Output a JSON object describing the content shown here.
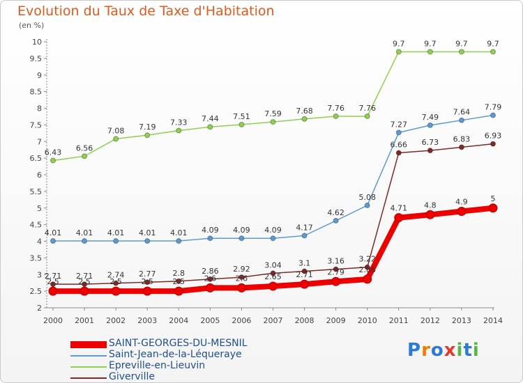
{
  "chart_data": {
    "type": "line",
    "title": "Evolution du Taux de Taxe d'Habitation",
    "unit_label": "(en %)",
    "x": [
      "2000",
      "2001",
      "2002",
      "2003",
      "2004",
      "2005",
      "2006",
      "2007",
      "2008",
      "2009",
      "2010",
      "2011",
      "2012",
      "2013",
      "2014"
    ],
    "ylim": [
      2,
      10
    ],
    "yticks": [
      "2",
      "2.5",
      "3",
      "3.5",
      "4",
      "4.5",
      "5",
      "5.5",
      "6",
      "6.5",
      "7",
      "7.5",
      "8",
      "8.5",
      "9",
      "9.5",
      "10"
    ],
    "grid": false,
    "legend_position": "bottom-left",
    "series": [
      {
        "name": "Saint-Jean-de-la-Léqueraye",
        "color": "#5b9bd5",
        "values": [
          4.01,
          4.01,
          4.01,
          4.01,
          4.01,
          4.09,
          4.09,
          4.09,
          4.17,
          4.62,
          5.08,
          7.27,
          7.49,
          7.64,
          7.79
        ],
        "labels": [
          "4.01",
          "4.01",
          "4.01",
          "4.01",
          "4.01",
          "4.09",
          "4.09",
          "4.09",
          "4.17",
          "4.62",
          "5.08",
          "7.27",
          "7.49",
          "7.64",
          "7.79"
        ]
      },
      {
        "name": "Epreville-en-Lieuvin",
        "color": "#8fd14f",
        "values": [
          6.43,
          6.56,
          7.08,
          7.19,
          7.33,
          7.44,
          7.51,
          7.59,
          7.68,
          7.76,
          7.76,
          9.7,
          9.7,
          9.7,
          9.7
        ],
        "labels": [
          "6.43",
          "6.56",
          "7.08",
          "7.19",
          "7.33",
          "7.44",
          "7.51",
          "7.59",
          "7.68",
          "7.76",
          "7.76",
          "9.7",
          "9.7",
          "9.7",
          "9.7"
        ]
      },
      {
        "name": "Giverville",
        "color": "#7b2a2a",
        "values": [
          2.71,
          2.71,
          2.74,
          2.77,
          2.8,
          2.86,
          2.92,
          3.04,
          3.1,
          3.16,
          3.22,
          6.66,
          6.73,
          6.83,
          6.93
        ],
        "labels": [
          "2.71",
          "2.71",
          "2.74",
          "2.77",
          "2.8",
          "2.86",
          "2.92",
          "3.04",
          "3.1",
          "3.16",
          "3.22",
          "6.66",
          "6.73",
          "6.83",
          "6.93"
        ]
      },
      {
        "name": "SAINT-GEORGES-DU-MESNIL",
        "color": "#ee0000",
        "values": [
          2.5,
          2.5,
          2.5,
          2.5,
          2.5,
          2.6,
          2.6,
          2.65,
          2.71,
          2.79,
          2.86,
          4.71,
          4.8,
          4.9,
          5.0
        ],
        "labels": [
          "2.5",
          "2.5",
          "2.5",
          "2.5",
          "2.5",
          "2.6",
          "2.6",
          "2.65",
          "2.71",
          "2.79",
          "2.86",
          "4.71",
          "4.8",
          "4.9",
          "5"
        ]
      }
    ]
  },
  "legend": [
    {
      "label": "SAINT-GEORGES-DU-MESNIL",
      "color": "#ee0000"
    },
    {
      "label": "Saint-Jean-de-la-Léqueraye",
      "color": "#5b9bd5"
    },
    {
      "label": "Epreville-en-Lieuvin",
      "color": "#8fd14f"
    },
    {
      "label": "Giverville",
      "color": "#7b2a2a"
    }
  ],
  "logo": {
    "text": "Proxiti",
    "letters": [
      "P",
      "r",
      "o",
      "x",
      "i",
      "t",
      "i"
    ],
    "colors": [
      "#2b7bd6",
      "#f07d00",
      "#2b7bd6",
      "#e33b2b",
      "#54b848",
      "#2b7bd6",
      "#54b848"
    ]
  }
}
